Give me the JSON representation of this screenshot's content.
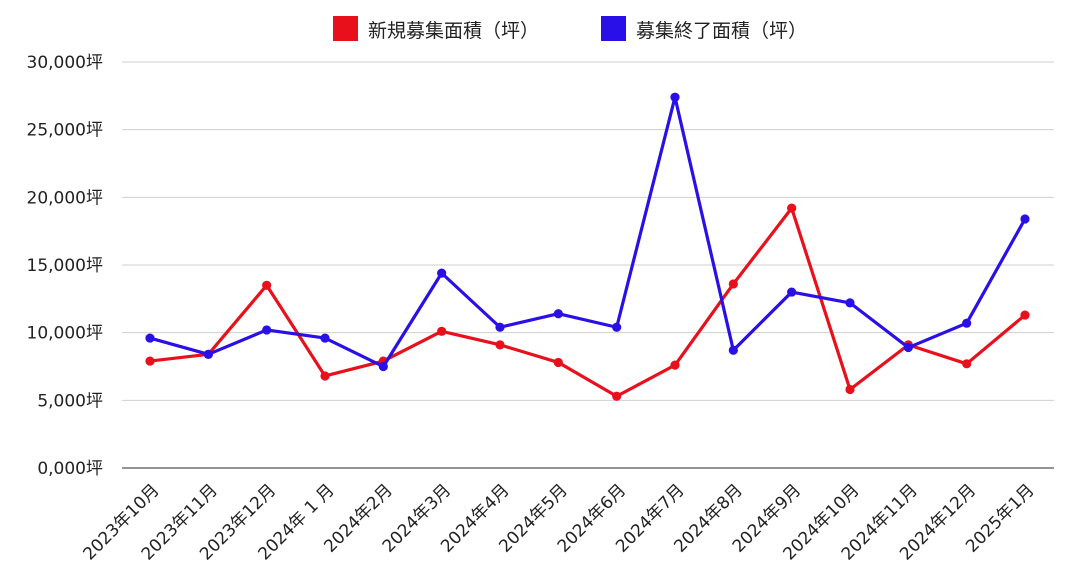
{
  "chart_data": {
    "type": "line",
    "categories": [
      "2023年10月",
      "2023年11月",
      "2023年12月",
      "2024年 1 月",
      "2024年2月",
      "2024年3月",
      "2024年4月",
      "2024年5月",
      "2024年6月",
      "2024年7月",
      "2024年8月",
      "2024年9月",
      "2024年10月",
      "2024年11月",
      "2024年12月",
      "2025年1月"
    ],
    "series": [
      {
        "name": "新規募集面積（坪）",
        "color": "#e8101a",
        "values": [
          7900,
          8400,
          13500,
          6800,
          7900,
          10100,
          9100,
          7800,
          5300,
          7600,
          13600,
          19200,
          5800,
          9100,
          7700,
          11300
        ]
      },
      {
        "name": "募集終了面積（坪）",
        "color": "#2a10e8",
        "values": [
          9600,
          8400,
          10200,
          9600,
          7500,
          14400,
          10400,
          11400,
          10400,
          27400,
          8700,
          13000,
          12200,
          8900,
          10700,
          18400
        ]
      }
    ],
    "y_ticks": [
      "0,000坪",
      "5,000坪",
      "10,000坪",
      "15,000坪",
      "20,000坪",
      "25,000坪",
      "30,000坪"
    ],
    "ylim": [
      0,
      30000
    ],
    "grid": true,
    "legend_position": "top-center",
    "xlabel": "",
    "ylabel": ""
  }
}
